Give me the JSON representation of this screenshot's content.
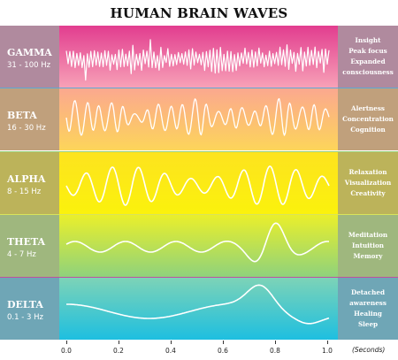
{
  "title": "HUMAN BRAIN WAVES",
  "axis": {
    "ticks": [
      "0.0",
      "0.2",
      "0.4",
      "0.6",
      "0.8",
      "1.0"
    ],
    "unit": "(Seconds)"
  },
  "bands": [
    {
      "name": "GAMMA",
      "range": "31 - 100 Hz",
      "descriptors": [
        "Insight",
        "Peak focus",
        "Expanded",
        "consciousness"
      ],
      "color": "#e23d8f",
      "frequency_hz": 40
    },
    {
      "name": "BETA",
      "range": "16 - 30 Hz",
      "descriptors": [
        "Alertness",
        "Concentration",
        "Cognition"
      ],
      "color": "#fdb57a",
      "frequency_hz": 22
    },
    {
      "name": "ALPHA",
      "range": "8 - 15 Hz",
      "descriptors": [
        "Relaxation",
        "Visualization",
        "Creativity"
      ],
      "color": "#fde31f",
      "frequency_hz": 10
    },
    {
      "name": "THETA",
      "range": "4 - 7 Hz",
      "descriptors": [
        "Meditation",
        "Intuition",
        "Memory"
      ],
      "color": "#c2e253",
      "frequency_hz": 5
    },
    {
      "name": "DELTA",
      "range": "0.1 - 3 Hz",
      "descriptors": [
        "Detached",
        "awareness",
        "Healing",
        "Sleep"
      ],
      "color": "#1ebfe0",
      "frequency_hz": 2
    }
  ]
}
